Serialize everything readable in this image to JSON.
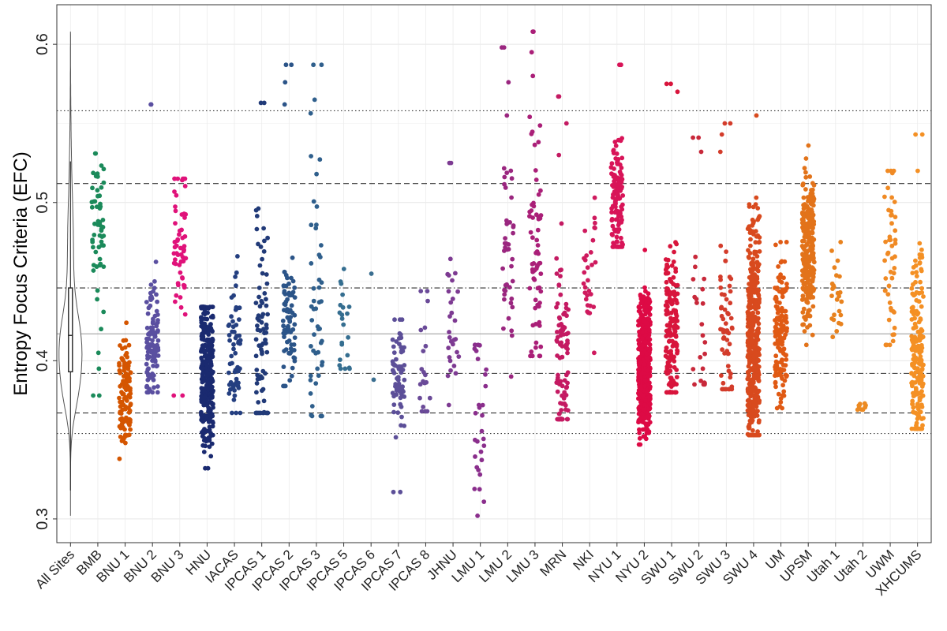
{
  "chart_data": {
    "type": "scatter",
    "subtype": "jittered strip plot with violin and boxplot",
    "title": "",
    "xlabel": "",
    "ylabel": "Entropy Focus Criteria (EFC)",
    "ylim": [
      0.285,
      0.625
    ],
    "yticks": [
      0.3,
      0.4,
      0.5,
      0.6
    ],
    "ytick_labels": [
      "0.3",
      "0.4",
      "0.5",
      "0.6"
    ],
    "grid": true,
    "categories": [
      "All Sites",
      "BMB",
      "BNU 1",
      "BNU 2",
      "BNU 3",
      "HNU",
      "IACAS",
      "IPCAS 1",
      "IPCAS 2",
      "IPCAS 3",
      "IPCAS 5",
      "IPCAS 6",
      "IPCAS 7",
      "IPCAS 8",
      "JHNU",
      "LMU 1",
      "LMU 2",
      "LMU 3",
      "MRN",
      "NKI",
      "NYU 1",
      "NYU 2",
      "SWU 1",
      "SWU 2",
      "SWU 3",
      "SWU 4",
      "UM",
      "UPSM",
      "Utah 1",
      "Utah 2",
      "UWM",
      "XHCUMS"
    ],
    "all_sites_summary": {
      "min": 0.302,
      "max": 0.608,
      "whisker_low": 0.318,
      "q1": 0.393,
      "median": 0.416,
      "q3": 0.446,
      "whisker_high": 0.526
    },
    "reference_lines": [
      {
        "value": 0.558,
        "style": "dotted"
      },
      {
        "value": 0.512,
        "style": "dashed"
      },
      {
        "value": 0.446,
        "style": "dotdash"
      },
      {
        "value": 0.417,
        "style": "solid"
      },
      {
        "value": 0.392,
        "style": "dotdash"
      },
      {
        "value": 0.367,
        "style": "dashed"
      },
      {
        "value": 0.354,
        "style": "dotted"
      }
    ],
    "series": [
      {
        "name": "BMB",
        "color": "#1b8a5a",
        "n": 60,
        "min": 0.378,
        "max": 0.531,
        "q1": 0.462,
        "median": 0.482,
        "q3": 0.505,
        "outliers": [
          0.378,
          0.395,
          0.405,
          0.42
        ]
      },
      {
        "name": "BNU 1",
        "color": "#d45500",
        "n": 110,
        "min": 0.338,
        "max": 0.424,
        "q1": 0.365,
        "median": 0.38,
        "q3": 0.393,
        "outliers": []
      },
      {
        "name": "BNU 2",
        "color": "#5a4fa0",
        "n": 110,
        "min": 0.38,
        "max": 0.562,
        "q1": 0.398,
        "median": 0.413,
        "q3": 0.428,
        "outliers": [
          0.562
        ]
      },
      {
        "name": "BNU 3",
        "color": "#e0127a",
        "n": 60,
        "min": 0.378,
        "max": 0.515,
        "q1": 0.45,
        "median": 0.47,
        "q3": 0.49,
        "outliers": [
          0.378
        ]
      },
      {
        "name": "HNU",
        "color": "#1a2a70",
        "n": 300,
        "min": 0.332,
        "max": 0.434,
        "q1": 0.37,
        "median": 0.39,
        "q3": 0.41,
        "outliers": [
          0.332
        ]
      },
      {
        "name": "IACAS",
        "color": "#243f80",
        "n": 60,
        "min": 0.367,
        "max": 0.466,
        "q1": 0.39,
        "median": 0.41,
        "q3": 0.43,
        "outliers": []
      },
      {
        "name": "IPCAS 1",
        "color": "#213a78",
        "n": 80,
        "min": 0.367,
        "max": 0.563,
        "q1": 0.385,
        "median": 0.41,
        "q3": 0.45,
        "outliers": [
          0.563
        ]
      },
      {
        "name": "IPCAS 2",
        "color": "#2b5488",
        "n": 80,
        "min": 0.384,
        "max": 0.587,
        "q1": 0.405,
        "median": 0.425,
        "q3": 0.44,
        "outliers": [
          0.562,
          0.576,
          0.587
        ]
      },
      {
        "name": "IPCAS 3",
        "color": "#2f5f8c",
        "n": 50,
        "min": 0.365,
        "max": 0.587,
        "q1": 0.39,
        "median": 0.42,
        "q3": 0.48,
        "outliers": [
          0.565,
          0.587
        ]
      },
      {
        "name": "IPCAS 5",
        "color": "#356e90",
        "n": 22,
        "min": 0.395,
        "max": 0.458,
        "q1": 0.41,
        "median": 0.42,
        "q3": 0.435,
        "outliers": []
      },
      {
        "name": "IPCAS 6",
        "color": "#3a6e90",
        "n": 2,
        "min": 0.388,
        "max": 0.455,
        "q1": 0.388,
        "median": 0.42,
        "q3": 0.455,
        "outliers": []
      },
      {
        "name": "IPCAS 7",
        "color": "#5c4f98",
        "n": 70,
        "min": 0.317,
        "max": 0.426,
        "q1": 0.375,
        "median": 0.39,
        "q3": 0.405,
        "outliers": [
          0.317
        ]
      },
      {
        "name": "IPCAS 8",
        "color": "#6a4a98",
        "n": 20,
        "min": 0.368,
        "max": 0.444,
        "q1": 0.385,
        "median": 0.41,
        "q3": 0.43,
        "outliers": []
      },
      {
        "name": "JHNU",
        "color": "#7d3a92",
        "n": 30,
        "min": 0.372,
        "max": 0.525,
        "q1": 0.405,
        "median": 0.425,
        "q3": 0.44,
        "outliers": [
          0.525
        ]
      },
      {
        "name": "LMU 1",
        "color": "#8a2e8c",
        "n": 30,
        "min": 0.302,
        "max": 0.41,
        "q1": 0.335,
        "median": 0.36,
        "q3": 0.385,
        "outliers": []
      },
      {
        "name": "LMU 2",
        "color": "#9a267f",
        "n": 45,
        "min": 0.39,
        "max": 0.598,
        "q1": 0.445,
        "median": 0.47,
        "q3": 0.5,
        "outliers": [
          0.555,
          0.576,
          0.598
        ]
      },
      {
        "name": "LMU 3",
        "color": "#aa1f78",
        "n": 70,
        "min": 0.403,
        "max": 0.608,
        "q1": 0.43,
        "median": 0.455,
        "q3": 0.5,
        "outliers": [
          0.58,
          0.595,
          0.608
        ]
      },
      {
        "name": "MRN",
        "color": "#c41a62",
        "n": 100,
        "min": 0.363,
        "max": 0.567,
        "q1": 0.375,
        "median": 0.4,
        "q3": 0.425,
        "outliers": [
          0.53,
          0.55,
          0.567
        ]
      },
      {
        "name": "NKI",
        "color": "#cf1a5e",
        "n": 30,
        "min": 0.405,
        "max": 0.503,
        "q1": 0.445,
        "median": 0.46,
        "q3": 0.475,
        "outliers": []
      },
      {
        "name": "NYU 1",
        "color": "#d81458",
        "n": 120,
        "min": 0.472,
        "max": 0.587,
        "q1": 0.485,
        "median": 0.5,
        "q3": 0.52,
        "outliers": [
          0.587
        ]
      },
      {
        "name": "NYU 2",
        "color": "#dd0a45",
        "n": 500,
        "min": 0.347,
        "max": 0.47,
        "q1": 0.378,
        "median": 0.395,
        "q3": 0.415,
        "outliers": []
      },
      {
        "name": "SWU 1",
        "color": "#d8153c",
        "n": 160,
        "min": 0.38,
        "max": 0.575,
        "q1": 0.395,
        "median": 0.415,
        "q3": 0.44,
        "outliers": [
          0.57,
          0.575
        ]
      },
      {
        "name": "SWU 2",
        "color": "#c8283a",
        "n": 25,
        "min": 0.385,
        "max": 0.541,
        "q1": 0.395,
        "median": 0.41,
        "q3": 0.43,
        "outliers": [
          0.532,
          0.541
        ]
      },
      {
        "name": "SWU 3",
        "color": "#d33c2b",
        "n": 60,
        "min": 0.382,
        "max": 0.55,
        "q1": 0.4,
        "median": 0.42,
        "q3": 0.445,
        "outliers": [
          0.532,
          0.543,
          0.55
        ]
      },
      {
        "name": "SWU 4",
        "color": "#d84a1e",
        "n": 450,
        "min": 0.353,
        "max": 0.555,
        "q1": 0.385,
        "median": 0.41,
        "q3": 0.45,
        "outliers": []
      },
      {
        "name": "UM",
        "color": "#e05a14",
        "n": 140,
        "min": 0.37,
        "max": 0.475,
        "q1": 0.395,
        "median": 0.415,
        "q3": 0.435,
        "outliers": []
      },
      {
        "name": "UPSM",
        "color": "#e2731a",
        "n": 260,
        "min": 0.41,
        "max": 0.536,
        "q1": 0.45,
        "median": 0.47,
        "q3": 0.49,
        "outliers": []
      },
      {
        "name": "Utah 1",
        "color": "#e8821e",
        "n": 26,
        "min": 0.415,
        "max": 0.475,
        "q1": 0.43,
        "median": 0.44,
        "q3": 0.455,
        "outliers": []
      },
      {
        "name": "Utah 2",
        "color": "#ec8a22",
        "n": 10,
        "min": 0.369,
        "max": 0.373,
        "q1": 0.37,
        "median": 0.371,
        "q3": 0.372,
        "outliers": []
      },
      {
        "name": "UWM",
        "color": "#f08a24",
        "n": 50,
        "min": 0.41,
        "max": 0.52,
        "q1": 0.43,
        "median": 0.47,
        "q3": 0.49,
        "outliers": []
      },
      {
        "name": "XHCUMS",
        "color": "#f49024",
        "n": 200,
        "min": 0.357,
        "max": 0.543,
        "q1": 0.38,
        "median": 0.405,
        "q3": 0.43,
        "outliers": [
          0.52,
          0.543
        ]
      }
    ]
  }
}
